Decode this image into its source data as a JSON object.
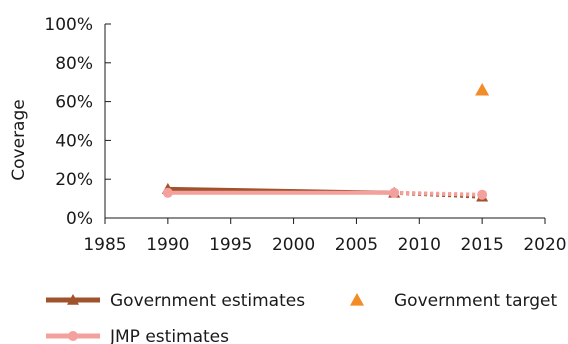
{
  "chart_data": {
    "type": "line",
    "title": "",
    "xlabel": "",
    "ylabel": "Coverage",
    "xlim": [
      1985,
      2020
    ],
    "ylim": [
      0,
      100
    ],
    "x_ticks": [
      1985,
      1990,
      1995,
      2000,
      2005,
      2010,
      2015,
      2020
    ],
    "y_ticks": [
      0,
      20,
      40,
      60,
      80,
      100
    ],
    "y_tick_labels": [
      "0%",
      "20%",
      "40%",
      "60%",
      "80%",
      "100%"
    ],
    "grid": false,
    "legend_position": "bottom",
    "series": [
      {
        "name": "Government estimates",
        "color": "#a0522d",
        "marker": "triangle",
        "points": [
          {
            "x": 1990,
            "y": 15
          },
          {
            "x": 2008,
            "y": 13
          },
          {
            "x": 2015,
            "y": 11
          }
        ],
        "solid_until_index": 1
      },
      {
        "name": "Government target",
        "color": "#f28c28",
        "marker": "triangle",
        "points": [
          {
            "x": 2015,
            "y": 66
          }
        ]
      },
      {
        "name": "JMP estimates",
        "color": "#f4a09c",
        "marker": "circle",
        "points": [
          {
            "x": 1990,
            "y": 13
          },
          {
            "x": 2008,
            "y": 13
          },
          {
            "x": 2015,
            "y": 12
          }
        ],
        "solid_until_index": 1
      }
    ]
  }
}
